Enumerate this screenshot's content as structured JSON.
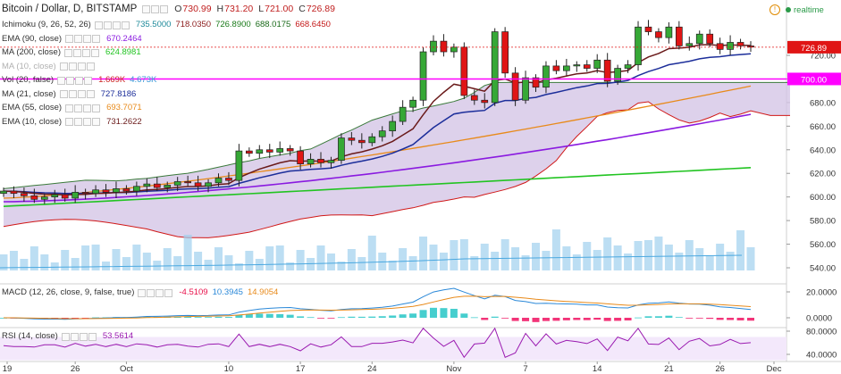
{
  "header": {
    "symbol": "Bitcoin / Dollar, D, BITSTAMP",
    "ohlc": [
      {
        "k": "O",
        "v": "730.99"
      },
      {
        "k": "H",
        "v": "731.20"
      },
      {
        "k": "L",
        "v": "721.00"
      },
      {
        "k": "C",
        "v": "726.89"
      }
    ],
    "realtime": "realtime"
  },
  "legends": [
    {
      "name": "Ichimoku (9, 26, 52, 26)",
      "values": [
        {
          "v": "735.5000",
          "color": "#1e8a9a"
        },
        {
          "v": "718.0350",
          "color": "#8b1a1a"
        },
        {
          "v": "726.8900",
          "color": "#1a7a1a"
        },
        {
          "v": "688.0175",
          "color": "#1a6a1a"
        },
        {
          "v": "668.6450",
          "color": "#c41818"
        }
      ]
    },
    {
      "name": "EMA (90, close)",
      "values": [
        {
          "v": "670.2464",
          "color": "#8a1ae0"
        }
      ]
    },
    {
      "name": "MA (200, close)",
      "values": [
        {
          "v": "624.8981",
          "color": "#22c422"
        }
      ]
    },
    {
      "name": "MA (10, close)",
      "values": [],
      "faded": true
    },
    {
      "name": "Vol (20, false)",
      "values": [
        {
          "v": "1.669K",
          "color": "#cc2222"
        },
        {
          "v": "4.673K",
          "color": "#3a9ad8"
        }
      ]
    },
    {
      "name": "MA (21, close)",
      "values": [
        {
          "v": "727.8186",
          "color": "#1c2e9a"
        }
      ]
    },
    {
      "name": "EMA (55, close)",
      "values": [
        {
          "v": "693.7071",
          "color": "#e88a1a"
        }
      ]
    },
    {
      "name": "EMA (10, close)",
      "values": [
        {
          "v": "731.2622",
          "color": "#6a1a1a"
        }
      ]
    }
  ],
  "macd": {
    "name": "MACD (12, 26, close, 9, false, true)",
    "values": [
      {
        "v": "-4.5109",
        "color": "#e8104a"
      },
      {
        "v": "10.3945",
        "color": "#2a88d8"
      },
      {
        "v": "14.9054",
        "color": "#e88a1a"
      }
    ]
  },
  "rsi": {
    "name": "RSI (14, close)",
    "values": [
      {
        "v": "53.5614",
        "color": "#9a1ab0"
      }
    ]
  },
  "colors": {
    "up": "#36a836",
    "down": "#e01515",
    "resistance": "#ff00ff",
    "lastPrice": "#e01515"
  },
  "chart_data": {
    "type": "candlestick",
    "x_ticks": [
      "19",
      "26",
      "Oct",
      "10",
      "17",
      "24",
      "Nov",
      "7",
      "14",
      "21",
      "26",
      "Dec"
    ],
    "price_axis": {
      "ticks": [
        "540.00",
        "560.00",
        "580.00",
        "600.00",
        "620.00",
        "640.00",
        "660.00",
        "680.00",
        "700.00",
        "720.00"
      ],
      "range": [
        530,
        750
      ]
    },
    "resistance": {
      "value": 700.0,
      "label": "700.00"
    },
    "last_price": {
      "value": 726.89,
      "label": "726.89"
    },
    "closes": [
      605,
      603,
      601,
      598,
      600,
      602,
      599,
      604,
      603,
      606,
      604,
      607,
      605,
      609,
      611,
      608,
      610,
      613,
      612,
      609,
      612,
      616,
      614,
      639,
      637,
      640,
      638,
      641,
      639,
      628,
      632,
      629,
      631,
      650,
      648,
      646,
      651,
      656,
      664,
      676,
      682,
      723,
      732,
      723,
      727,
      686,
      682,
      680,
      740,
      705,
      682,
      701,
      693,
      711,
      707,
      711,
      712,
      709,
      716,
      698,
      709,
      712,
      744,
      740,
      735,
      744,
      728,
      730,
      738,
      730,
      725,
      731,
      728,
      727
    ],
    "macd_axis": {
      "ticks": [
        "20.0000",
        "0.0000"
      ],
      "range": [
        -8,
        30
      ]
    },
    "rsi_axis": {
      "ticks": [
        "80.0000",
        "40.0000"
      ],
      "range": [
        30,
        90
      ]
    }
  }
}
